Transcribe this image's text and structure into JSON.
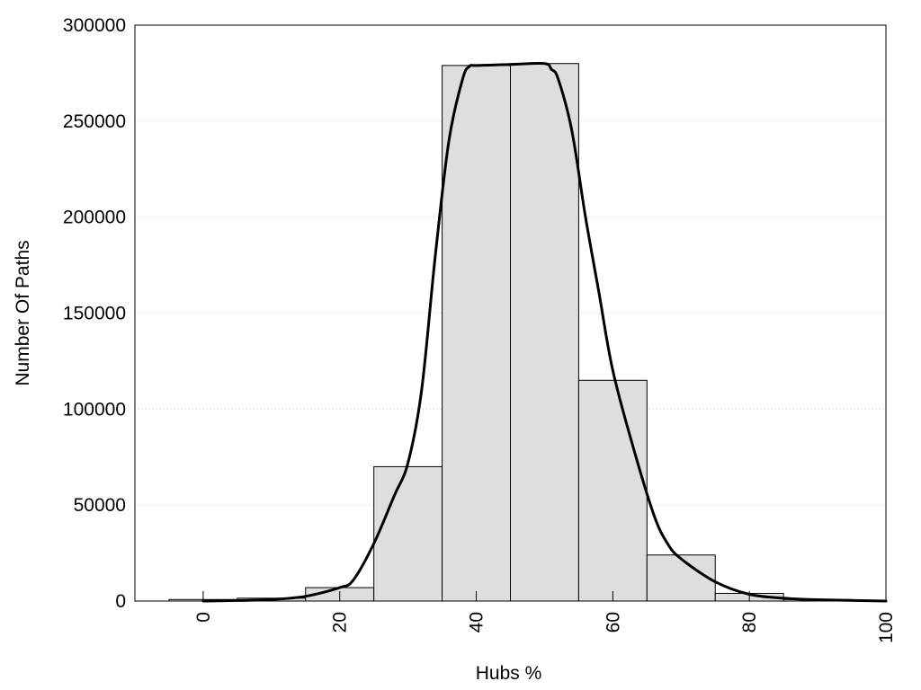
{
  "chart_data": {
    "type": "bar",
    "xlabel": "Hubs %",
    "ylabel": "Number Of Paths",
    "xlim": [
      -10,
      100
    ],
    "ylim": [
      0,
      300000
    ],
    "x_ticks": [
      0,
      20,
      40,
      60,
      80,
      100
    ],
    "y_ticks": [
      0,
      50000,
      100000,
      150000,
      200000,
      250000,
      300000
    ],
    "grid": "horizontal-dotted",
    "bars": {
      "centers": [
        0,
        10,
        20,
        30,
        40,
        50,
        60,
        70,
        80,
        90
      ],
      "width": 10,
      "values": [
        800,
        1500,
        7000,
        70000,
        279000,
        280000,
        115000,
        24000,
        4000,
        800
      ]
    },
    "curve": {
      "x": [
        0,
        5,
        10,
        15,
        20,
        22,
        25,
        28,
        30,
        32,
        34,
        36,
        38,
        39,
        40,
        45,
        50,
        51,
        52,
        54,
        56,
        58,
        60,
        63,
        66,
        68,
        70,
        75,
        80,
        85,
        90,
        100
      ],
      "y": [
        0,
        300,
        800,
        2500,
        7000,
        11000,
        30000,
        55000,
        72000,
        110000,
        180000,
        240000,
        272000,
        278500,
        279000,
        279500,
        280000,
        277000,
        272000,
        245000,
        200000,
        160000,
        120000,
        80000,
        45000,
        30000,
        22000,
        10000,
        3500,
        1500,
        700,
        0
      ]
    }
  }
}
